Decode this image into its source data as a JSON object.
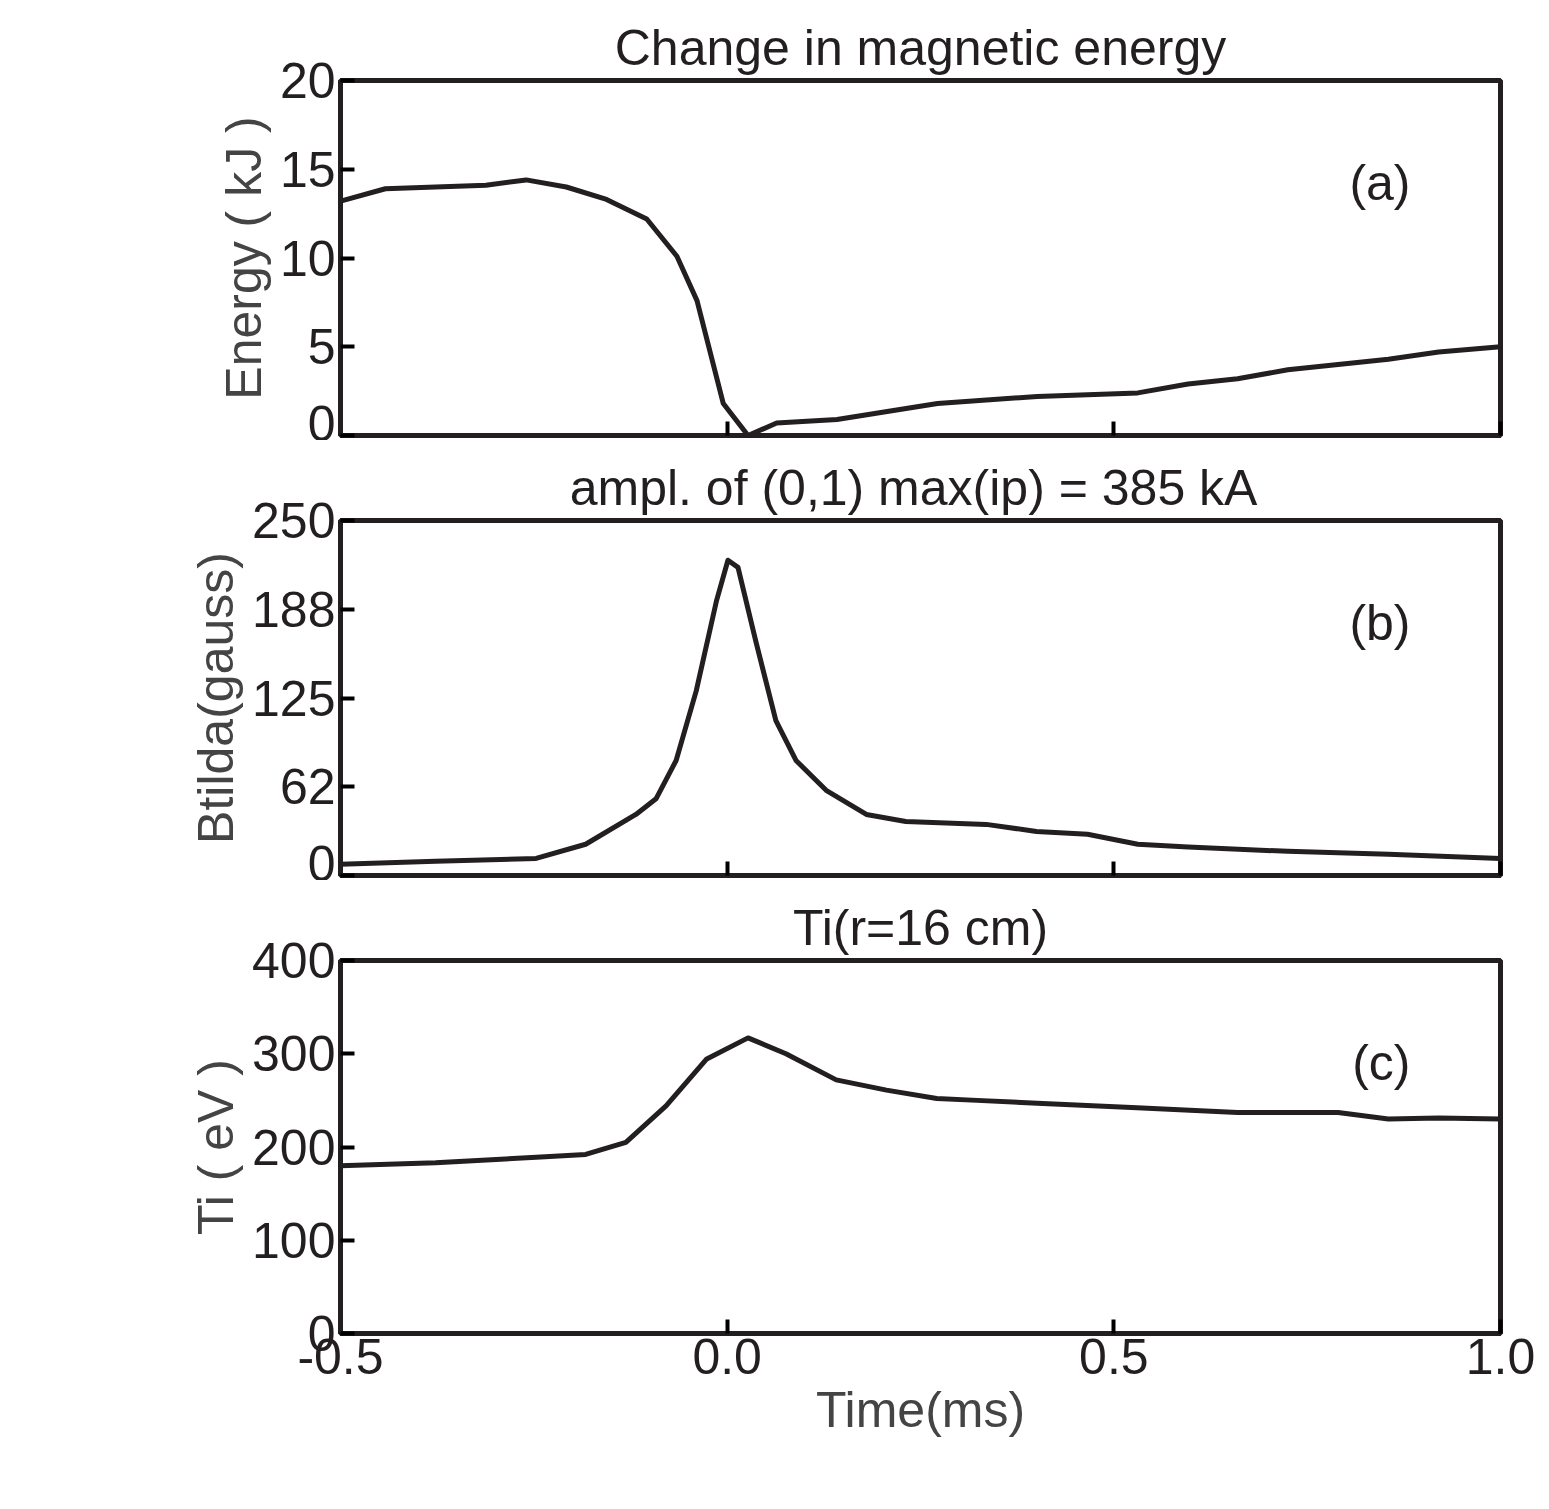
{
  "chart_data": [
    {
      "type": "line",
      "title": "Change in magnetic energy",
      "ylabel": "Energy ( kJ )",
      "annotations": [
        "(a)"
      ],
      "tick_labels": "y",
      "xlim": [
        -0.5,
        1.0
      ],
      "xticks": [
        {
          "value": -0.5,
          "label": null
        },
        {
          "value": 0,
          "label": null
        },
        {
          "value": 0.5,
          "label": null
        },
        {
          "value": 1,
          "label": null
        }
      ],
      "ylim": [
        0,
        20
      ],
      "yticks": [
        0,
        5,
        10,
        15,
        20
      ],
      "series": [
        {
          "color": "#231f20",
          "x": [
            -0.5,
            -0.442,
            -0.312,
            -0.26,
            -0.208,
            -0.156,
            -0.104,
            -0.065,
            -0.039,
            -0.005,
            0.027,
            0.064,
            0.142,
            0.272,
            0.401,
            0.466,
            0.531,
            0.596,
            0.66,
            0.725,
            0.79,
            0.855,
            0.92,
            1.0
          ],
          "values": [
            13.2,
            13.9,
            14.1,
            14.4,
            14.0,
            13.3,
            12.2,
            10.1,
            7.6,
            1.8,
            0,
            0.7,
            0.9,
            1.8,
            2.2,
            2.3,
            2.4,
            2.9,
            3.2,
            3.7,
            4.0,
            4.3,
            4.7,
            5.0
          ]
        }
      ]
    },
    {
      "type": "line",
      "title": "ampl. of (0,1)  max(ip) = 385 kA",
      "ylabel": "Btilda(gauss)",
      "annotations": [
        "(b)"
      ],
      "tick_labels": "y",
      "xlim": [
        -0.5,
        1.0
      ],
      "xticks": [
        {
          "value": -0.5,
          "label": null
        },
        {
          "value": 0,
          "label": null
        },
        {
          "value": 0.5,
          "label": null
        },
        {
          "value": 1,
          "label": null
        }
      ],
      "ylim": [
        0,
        250
      ],
      "yticks": [
        0,
        {
          "value": 62.5,
          "label": "62"
        },
        125,
        {
          "value": 187.5,
          "label": "188"
        },
        250
      ],
      "series": [
        {
          "color": "#231f20",
          "x": [
            -0.5,
            -0.377,
            -0.247,
            -0.183,
            -0.118,
            -0.092,
            -0.066,
            -0.04,
            -0.014,
            0.001,
            0.014,
            0.037,
            0.063,
            0.089,
            0.128,
            0.18,
            0.231,
            0.335,
            0.4,
            0.466,
            0.531,
            0.596,
            0.725,
            0.855,
            1.0
          ],
          "values": [
            8,
            10,
            12,
            22,
            43,
            54,
            81,
            130,
            193,
            222,
            217,
            165,
            109,
            81,
            60,
            43,
            38,
            36,
            31,
            29,
            22,
            20,
            17,
            15,
            12
          ]
        }
      ]
    },
    {
      "type": "line",
      "title": "Ti(r=16 cm)",
      "ylabel": "Ti ( eV )",
      "xlabel": "Time(ms)",
      "annotations": [
        "(c)"
      ],
      "xlim": [
        -0.5,
        1.0
      ],
      "xticks": [
        {
          "value": -0.5,
          "label": "-0.5"
        },
        {
          "value": 0,
          "label": "0.0"
        },
        {
          "value": 0.5,
          "label": "0.5"
        },
        {
          "value": 1,
          "label": "1.0"
        }
      ],
      "ylim": [
        0,
        400
      ],
      "yticks": [
        0,
        100,
        200,
        300,
        400
      ],
      "series": [
        {
          "color": "#231f20",
          "x": [
            -0.5,
            -0.377,
            -0.247,
            -0.183,
            -0.131,
            -0.079,
            -0.027,
            0.027,
            0.076,
            0.141,
            0.206,
            0.271,
            0.323,
            0.401,
            0.53,
            0.66,
            0.79,
            0.855,
            0.92,
            1.0
          ],
          "values": [
            180,
            183,
            189,
            192,
            205,
            244,
            294,
            317,
            300,
            272,
            261,
            252,
            250,
            247,
            242,
            237,
            237,
            230,
            231,
            230
          ]
        }
      ]
    }
  ]
}
